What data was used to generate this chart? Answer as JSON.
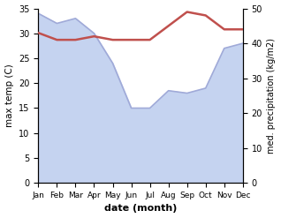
{
  "months": [
    "Jan",
    "Feb",
    "Mar",
    "Apr",
    "May",
    "Jun",
    "Jul",
    "Aug",
    "Sep",
    "Oct",
    "Nov",
    "Dec"
  ],
  "max_temp": [
    34,
    32,
    33,
    30,
    24,
    15,
    15,
    18.5,
    18,
    19,
    27,
    28
  ],
  "med_precip": [
    43,
    41,
    41,
    42,
    41,
    41,
    41,
    45,
    49,
    48,
    44,
    44
  ],
  "temp_color": "#c0504d",
  "precip_fill_color": "#c5d3f0",
  "temp_line_color": "#a0aad8",
  "ylim_temp": [
    0,
    35
  ],
  "ylim_precip": [
    0,
    50
  ],
  "ylabel_left": "max temp (C)",
  "ylabel_right": "med. precipitation (kg/m2)",
  "xlabel": "date (month)",
  "fig_width": 3.18,
  "fig_height": 2.47,
  "dpi": 100
}
